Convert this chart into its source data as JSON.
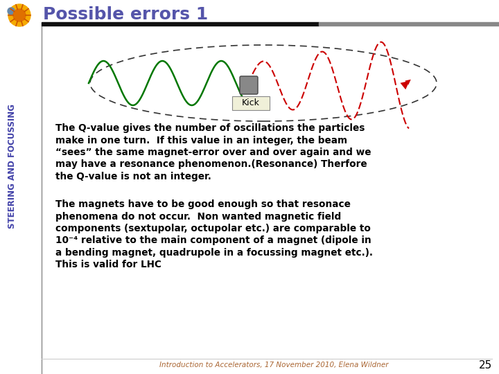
{
  "title": "Possible errors 1",
  "sidebar_text": "STEERING AND FOCUSSING",
  "para1_lines": [
    "The Q-value gives the number of oscillations the particles",
    "make in one turn.  If this value in an integer, the beam",
    "“sees” the same magnet-error over and over again and we",
    "may have a resonance phenomenon.(Resonance) Therfore",
    "the Q-value is not an integer."
  ],
  "para2_lines": [
    "The magnets have to be good enough so that resonace",
    "phenomena do not occur.  Non wanted magnetic field",
    "components (sextupolar, octupolar etc.) are comparable to",
    "10⁻⁴ relative to the main component of a magnet (dipole in",
    "a bending magnet, quadrupole in a focussing magnet etc.).",
    "This is valid for LHC"
  ],
  "footer": "Introduction to Accelerators, 17 November 2010, Elena Wildner",
  "page_num": "25",
  "bg_color": "#ffffff",
  "title_color": "#5555aa",
  "sidebar_color": "#4444aa",
  "header_bar_left": "#111111",
  "header_bar_right": "#aaaaaa",
  "text_color": "#000000",
  "footer_color": "#aa6633",
  "divider_color": "#888888",
  "ellipse_color": "#333333",
  "green_color": "#007700",
  "red_color": "#cc0000",
  "kick_box_color": "#888888",
  "kick_label_bg": "#f0f0d8",
  "kick_label_border": "#888888"
}
